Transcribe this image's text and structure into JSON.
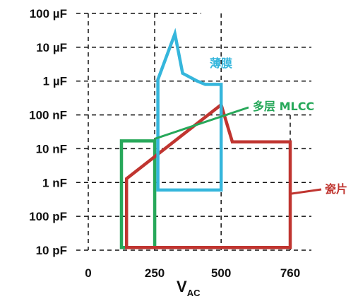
{
  "chart_data": {
    "type": "area",
    "title": "",
    "xlabel": "V",
    "xlabel_sub": "AC",
    "ylabel": "",
    "x_ticks": [
      {
        "value": 0,
        "label": "0"
      },
      {
        "value": 250,
        "label": "250"
      },
      {
        "value": 500,
        "label": "500"
      },
      {
        "value": 760,
        "label": "760"
      }
    ],
    "y_scale": "log",
    "y_unit": "F",
    "y_ticks": [
      {
        "value": 1e-11,
        "label": "10 pF"
      },
      {
        "value": 1e-10,
        "label": "100 pF"
      },
      {
        "value": 1e-09,
        "label": "1 nF"
      },
      {
        "value": 1e-08,
        "label": "10 nF"
      },
      {
        "value": 1e-07,
        "label": "100 nF"
      },
      {
        "value": 1e-06,
        "label": "1 µF"
      },
      {
        "value": 1e-05,
        "label": "10 µF"
      },
      {
        "value": 0.0001,
        "label": "100 µF"
      }
    ],
    "xlim": [
      0,
      760
    ],
    "ylim": [
      1e-11,
      0.0001
    ],
    "grid": true,
    "series": [
      {
        "name": "薄膜",
        "color": "#35b6dc",
        "points": [
          [
            262,
            6e-10
          ],
          [
            262,
            1.1e-06
          ],
          [
            326,
            2.5e-05
          ],
          [
            355,
            1.7e-06
          ],
          [
            410,
            1e-06
          ],
          [
            440,
            8e-07
          ],
          [
            500,
            8e-07
          ],
          [
            500,
            6e-10
          ],
          [
            262,
            6e-10
          ]
        ]
      },
      {
        "name": "多层 MLCC",
        "color": "#27a85a",
        "points": [
          [
            125,
            1.2e-11
          ],
          [
            250,
            1.2e-11
          ],
          [
            250,
            1.7e-08
          ],
          [
            125,
            1.7e-08
          ],
          [
            125,
            1.2e-11
          ]
        ]
      },
      {
        "name": "瓷片",
        "color": "#c03530",
        "points": [
          [
            144,
            1.2e-11
          ],
          [
            760,
            1.2e-11
          ],
          [
            760,
            1.6e-08
          ],
          [
            542,
            1.6e-08
          ],
          [
            500,
            2e-07
          ],
          [
            144,
            1.3e-09
          ],
          [
            144,
            1.2e-11
          ]
        ]
      }
    ]
  }
}
